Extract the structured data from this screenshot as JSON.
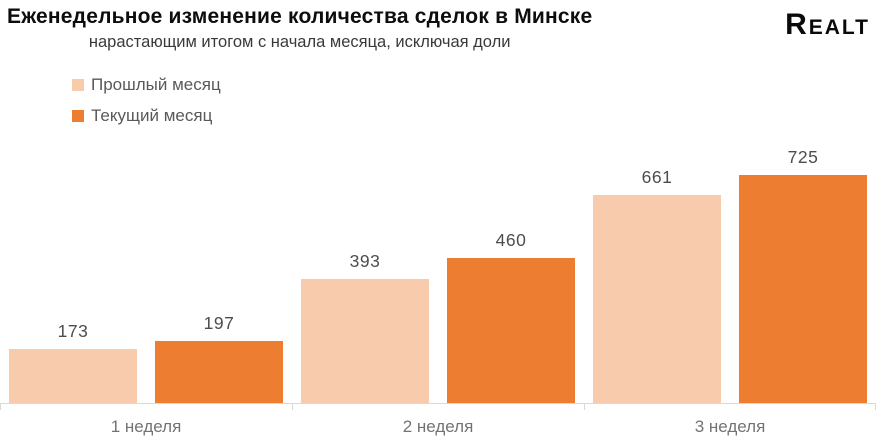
{
  "header": {
    "logo": "Realt"
  },
  "colors": {
    "series_prev": "#F8CBAD",
    "series_curr": "#ED7D31",
    "axis": "#D9D9D9",
    "value_label": "#4D4D4D",
    "category_label": "#737373",
    "legend_label": "#595959",
    "title": "#0D0D0D"
  },
  "chart_data": {
    "type": "bar",
    "title": "Еженедельное изменение количества сделок в Минске",
    "subtitle": "нарастающим итогом с начала месяца, исключая доли",
    "categories": [
      "1 неделя",
      "2 неделя",
      "3 неделя"
    ],
    "series": [
      {
        "name": "Прошлый месяц",
        "color": "#F8CBAD",
        "values": [
          173,
          393,
          661
        ]
      },
      {
        "name": "Текущий месяц",
        "color": "#ED7D31",
        "values": [
          197,
          460,
          725
        ]
      }
    ],
    "xlabel": "",
    "ylabel": "",
    "ylim": [
      0,
      770
    ],
    "grid": false,
    "legend_position": "top-left",
    "value_labels": true
  }
}
